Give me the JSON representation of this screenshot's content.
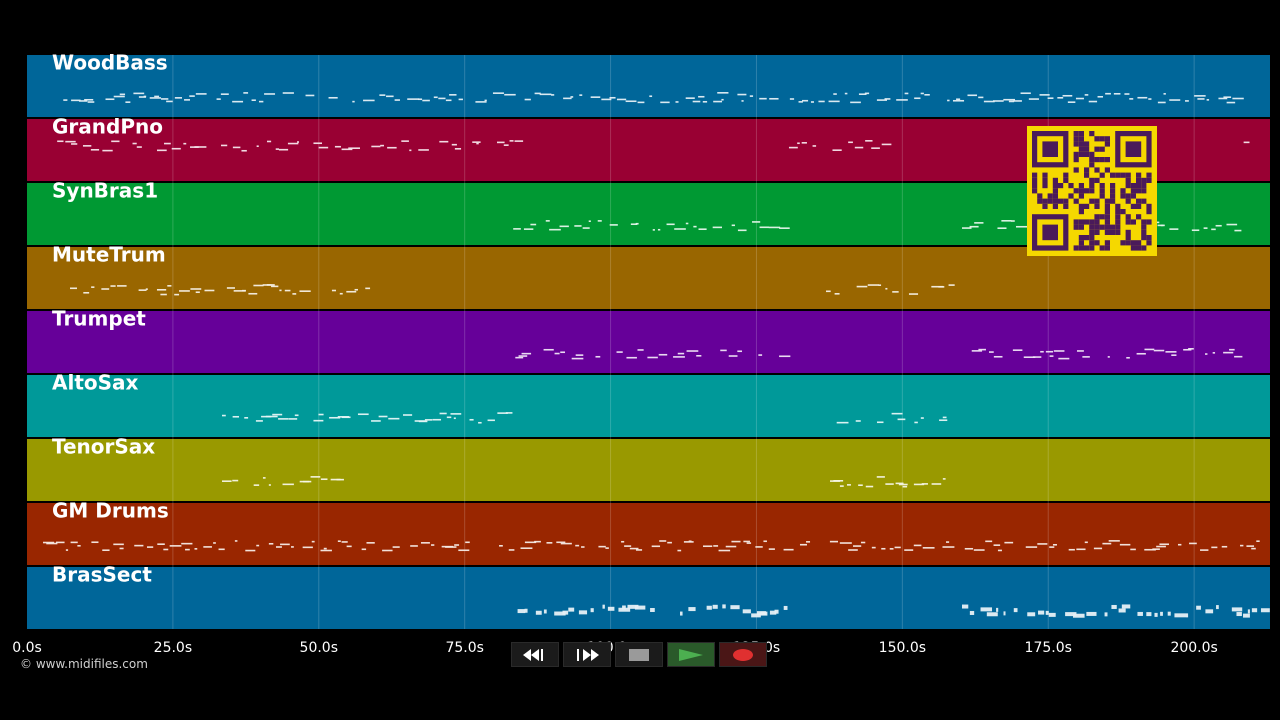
{
  "tracks": [
    {
      "name": "WoodBass",
      "color": "#006699",
      "note_color": "#e6f0f6"
    },
    {
      "name": "GrandPno",
      "color": "#990033",
      "note_color": "#f6e6ec"
    },
    {
      "name": "SynBras1",
      "color": "#009933",
      "note_color": "#e6f6ec"
    },
    {
      "name": "MuteTrum",
      "color": "#996600",
      "note_color": "#f6f0e6"
    },
    {
      "name": "Trumpet",
      "color": "#660099",
      "note_color": "#f0e6f6"
    },
    {
      "name": "AltoSax",
      "color": "#009999",
      "note_color": "#e6f6f6"
    },
    {
      "name": "TenorSax",
      "color": "#999900",
      "note_color": "#f6f6e6"
    },
    {
      "name": "GM Drums",
      "color": "#992600",
      "note_color": "#f6ebe6"
    },
    {
      "name": "BrasSect",
      "color": "#006699",
      "note_color": "#e6f0f6"
    }
  ],
  "time_axis": {
    "ticks": [
      "0.0s",
      "25.0s",
      "50.0s",
      "75.0s",
      "100.0s",
      "125.0s",
      "150.0s",
      "175.0s",
      "200.0s"
    ],
    "tick_values": [
      0,
      25,
      50,
      75,
      100,
      125,
      150,
      175,
      200
    ],
    "range": [
      0,
      213
    ]
  },
  "copyright": "© www.midifiles.com",
  "transport": {
    "rewind_icon": "rewind-icon",
    "fast_forward_icon": "fast-forward-icon",
    "stop_icon": "stop-icon",
    "play_icon": "play-icon",
    "record_icon": "record-icon",
    "colors": {
      "play": "#4caf50",
      "record": "#e03030",
      "stop": "#9a9a9a"
    }
  },
  "qr_code": {
    "color": "#4a1a5a",
    "background": "#f5d800"
  }
}
